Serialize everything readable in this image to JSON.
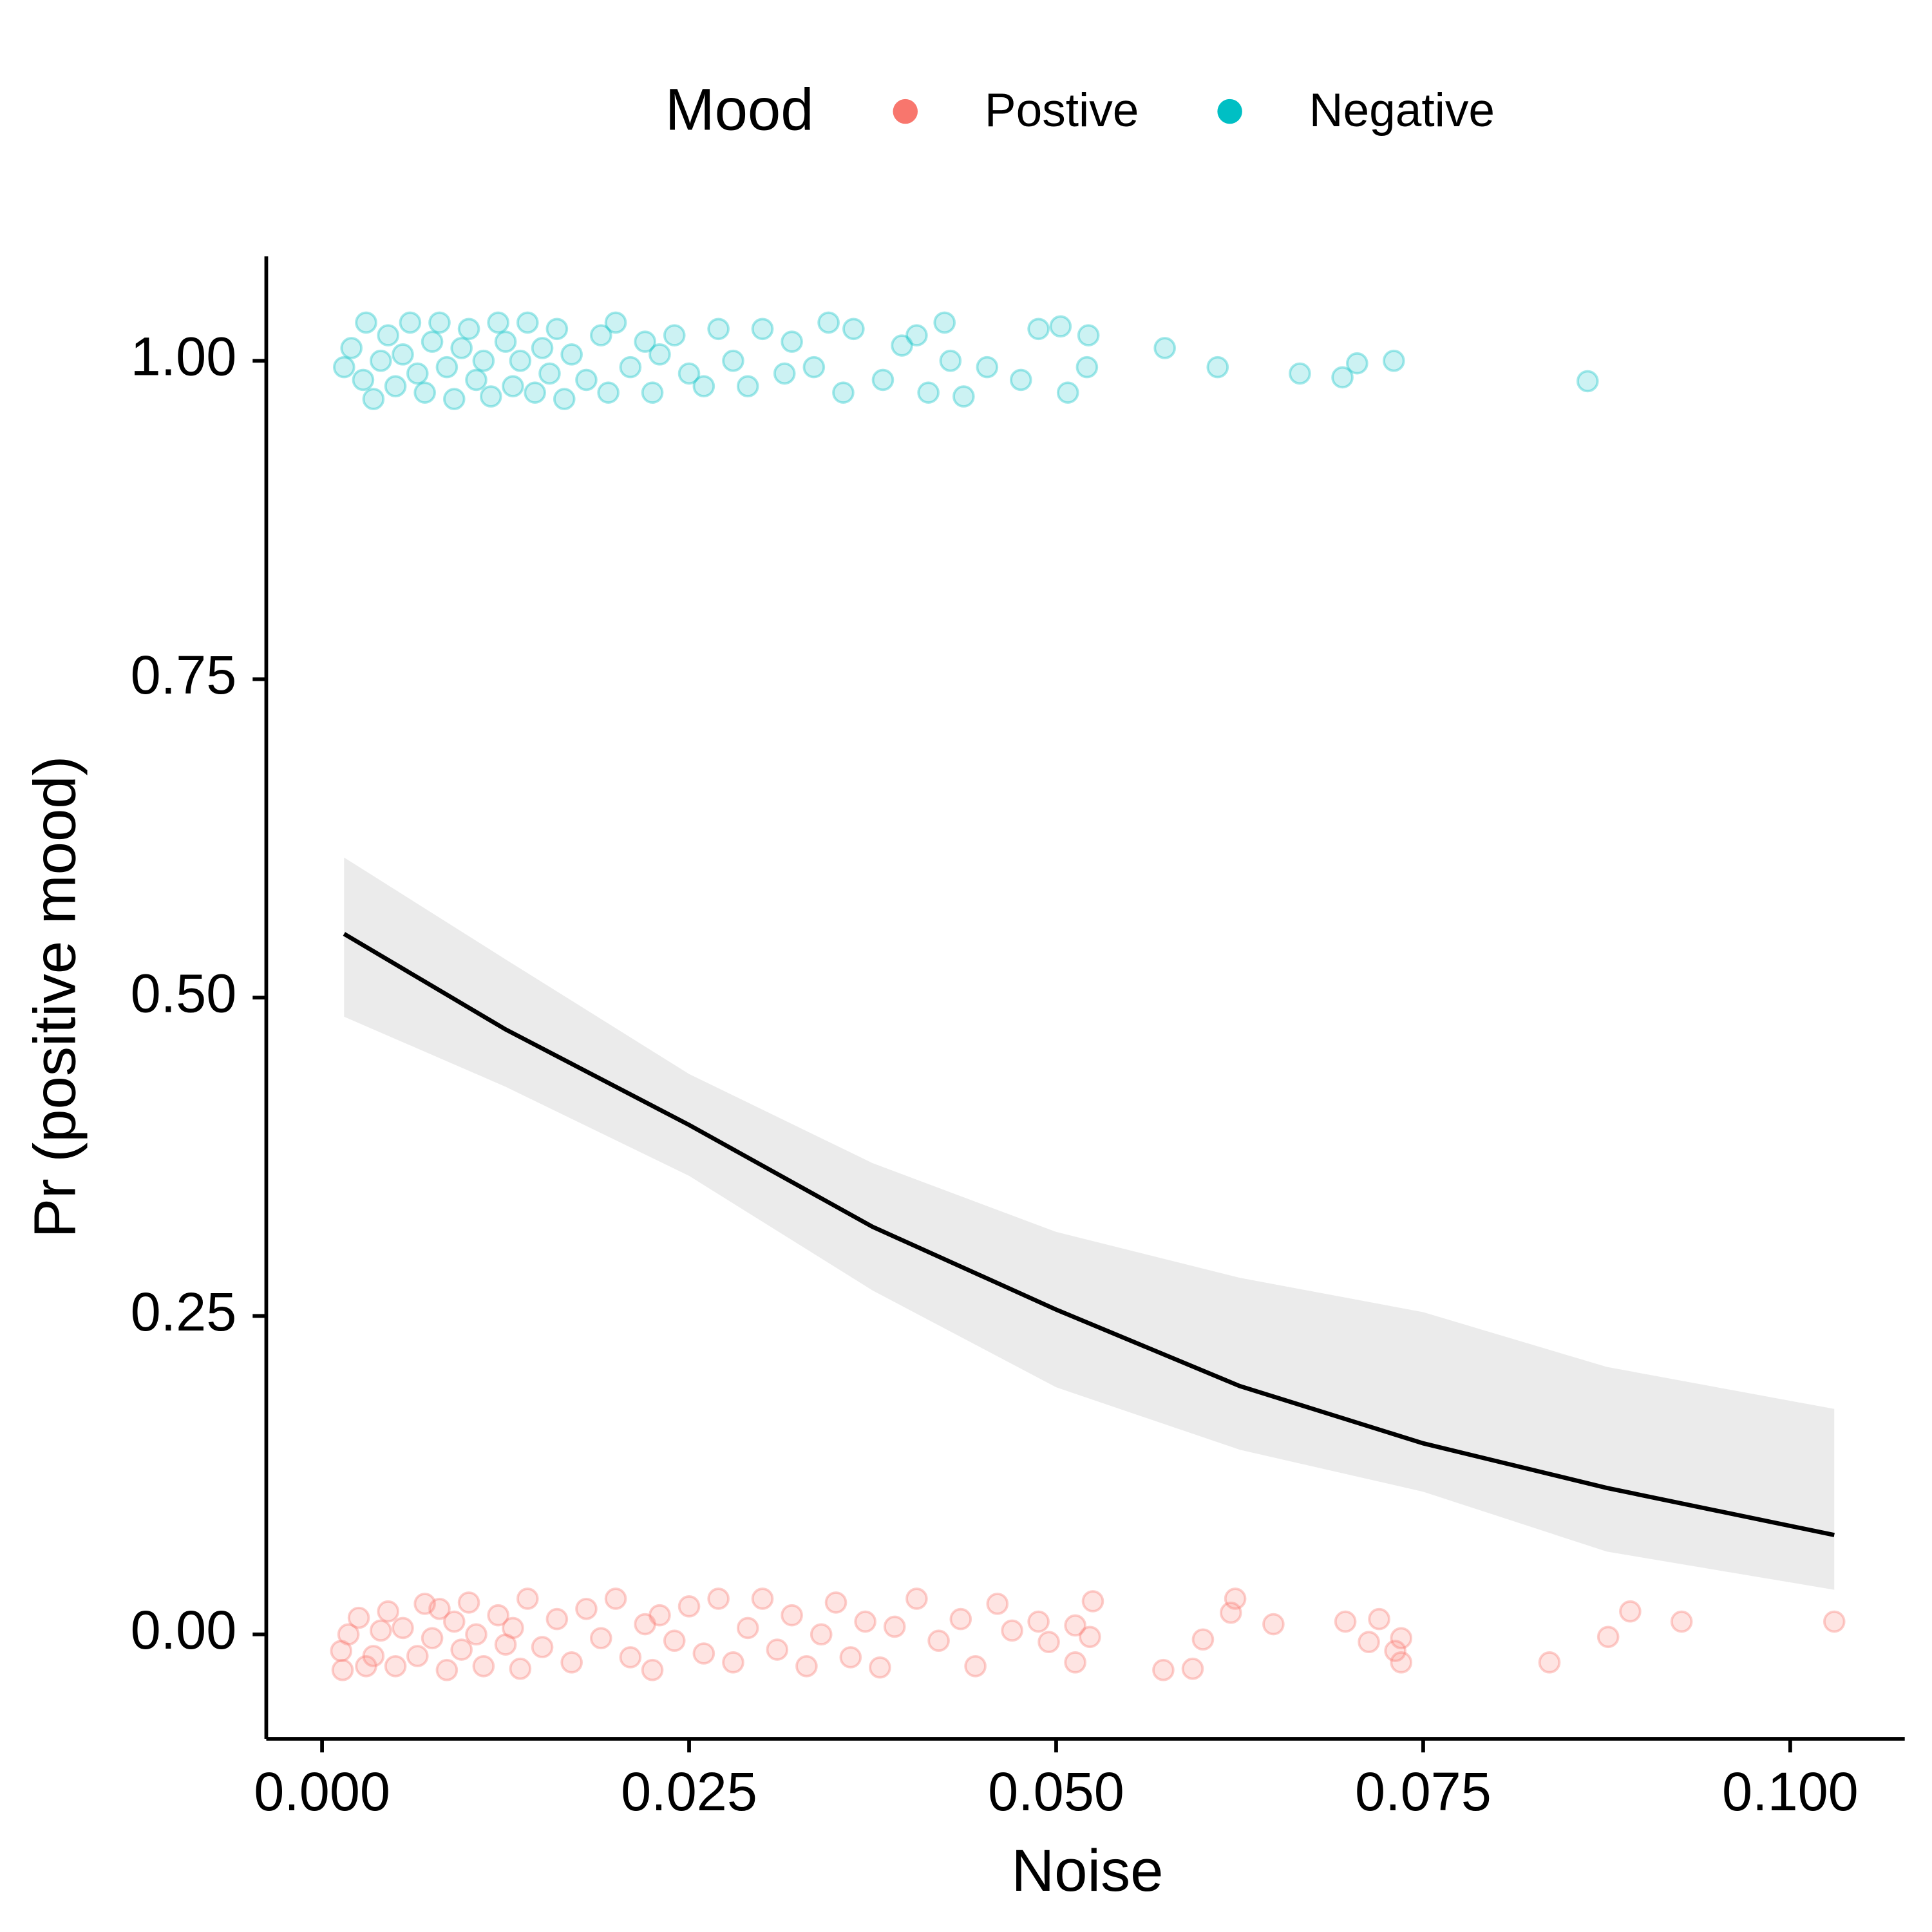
{
  "chart_data": {
    "type": "scatter",
    "x_label": "Noise",
    "y_label": "Pr (positive mood)",
    "legend_title": "Mood",
    "legend_position": "top",
    "xlim": [
      -0.0038,
      0.1078
    ],
    "ylim": [
      -0.082,
      1.082
    ],
    "xticks": [
      {
        "value": 0,
        "label": "0.000"
      },
      0.025,
      {
        "value": 0.05,
        "label": "0.050"
      },
      0.075,
      {
        "value": 0.1,
        "label": "0.100"
      }
    ],
    "yticks": [
      {
        "value": 0,
        "label": "0.00"
      },
      0.25,
      {
        "value": 0.5,
        "label": "0.50"
      },
      0.75,
      {
        "value": 1,
        "label": "1.00"
      }
    ],
    "series": [
      {
        "name": "Postive",
        "color": "#f8766d",
        "x": [
          0.0013,
          0.0014,
          0.0018,
          0.0025,
          0.003,
          0.0035,
          0.004,
          0.0045,
          0.005,
          0.0055,
          0.0065,
          0.007,
          0.0075,
          0.008,
          0.0085,
          0.009,
          0.0095,
          0.01,
          0.0105,
          0.011,
          0.012,
          0.0125,
          0.013,
          0.0135,
          0.014,
          0.015,
          0.016,
          0.017,
          0.018,
          0.019,
          0.02,
          0.021,
          0.022,
          0.0225,
          0.023,
          0.024,
          0.025,
          0.026,
          0.027,
          0.028,
          0.029,
          0.03,
          0.031,
          0.032,
          0.033,
          0.034,
          0.035,
          0.036,
          0.037,
          0.038,
          0.039,
          0.0405,
          0.042,
          0.0435,
          0.0445,
          0.046,
          0.047,
          0.0488,
          0.0495,
          0.0513,
          0.0523,
          0.0513,
          0.0525,
          0.0573,
          0.0593,
          0.06,
          0.0619,
          0.0622,
          0.0648,
          0.0697,
          0.0713,
          0.072,
          0.0731,
          0.0735,
          0.0735,
          0.0836,
          0.0876,
          0.0891,
          0.0926,
          0.103
        ],
        "values": [
          -0.013,
          -0.028,
          0.0,
          0.013,
          -0.025,
          -0.017,
          0.003,
          0.018,
          -0.025,
          0.005,
          -0.017,
          0.024,
          -0.003,
          0.02,
          -0.028,
          0.01,
          -0.012,
          0.025,
          0.0,
          -0.025,
          0.015,
          -0.008,
          0.005,
          -0.027,
          0.028,
          -0.01,
          0.012,
          -0.022,
          0.02,
          -0.003,
          0.028,
          -0.018,
          0.008,
          -0.028,
          0.015,
          -0.005,
          0.022,
          -0.015,
          0.028,
          -0.022,
          0.005,
          0.028,
          -0.012,
          0.015,
          -0.025,
          0.0,
          0.025,
          -0.018,
          0.01,
          -0.026,
          0.006,
          0.028,
          -0.005,
          0.012,
          -0.025,
          0.024,
          0.003,
          0.01,
          -0.006,
          0.007,
          -0.002,
          -0.022,
          0.026,
          -0.028,
          -0.027,
          -0.004,
          0.017,
          0.028,
          0.008,
          0.01,
          -0.006,
          0.012,
          -0.013,
          -0.003,
          -0.022,
          -0.022,
          -0.002,
          0.018,
          0.01,
          0.01
        ]
      },
      {
        "name": "Negative",
        "color": "#00bfc4",
        "x": [
          0.0015,
          0.002,
          0.0028,
          0.003,
          0.0035,
          0.004,
          0.0045,
          0.005,
          0.0055,
          0.006,
          0.0065,
          0.007,
          0.0075,
          0.008,
          0.0085,
          0.009,
          0.0095,
          0.01,
          0.0105,
          0.011,
          0.0115,
          0.012,
          0.0125,
          0.013,
          0.0135,
          0.014,
          0.0145,
          0.015,
          0.0155,
          0.016,
          0.0165,
          0.017,
          0.018,
          0.019,
          0.0195,
          0.02,
          0.021,
          0.022,
          0.0225,
          0.023,
          0.024,
          0.025,
          0.026,
          0.027,
          0.028,
          0.029,
          0.03,
          0.0315,
          0.032,
          0.0335,
          0.0345,
          0.0355,
          0.0362,
          0.0382,
          0.0395,
          0.0405,
          0.0413,
          0.0424,
          0.0428,
          0.0437,
          0.0453,
          0.0476,
          0.0488,
          0.0503,
          0.0508,
          0.0521,
          0.0522,
          0.0574,
          0.061,
          0.0666,
          0.0695,
          0.0705,
          0.073,
          0.0862
        ],
        "values": [
          0.995,
          1.01,
          0.985,
          1.03,
          0.97,
          1.0,
          1.02,
          0.98,
          1.005,
          1.03,
          0.99,
          0.975,
          1.015,
          1.03,
          0.995,
          0.97,
          1.01,
          1.025,
          0.985,
          1.0,
          0.972,
          1.03,
          1.015,
          0.98,
          1.0,
          1.03,
          0.975,
          1.01,
          0.99,
          1.025,
          0.97,
          1.005,
          0.985,
          1.02,
          0.975,
          1.03,
          0.995,
          1.015,
          0.975,
          1.005,
          1.02,
          0.99,
          0.98,
          1.025,
          1.0,
          0.98,
          1.025,
          0.99,
          1.015,
          0.995,
          1.03,
          0.975,
          1.025,
          0.985,
          1.012,
          1.02,
          0.975,
          1.03,
          1.0,
          0.972,
          0.995,
          0.985,
          1.025,
          1.027,
          0.975,
          0.995,
          1.02,
          1.01,
          0.995,
          0.99,
          0.987,
          0.998,
          1.0,
          0.984
        ]
      }
    ],
    "fit": {
      "color": "#000000",
      "band_color": "#ebebeb",
      "x": [
        0.0015,
        0.0125,
        0.025,
        0.0375,
        0.05,
        0.0625,
        0.075,
        0.0875,
        0.103
      ],
      "values": [
        0.55,
        0.475,
        0.4,
        0.32,
        0.255,
        0.195,
        0.15,
        0.115,
        0.078
      ],
      "lower": [
        0.485,
        0.43,
        0.36,
        0.27,
        0.194,
        0.145,
        0.112,
        0.065,
        0.035
      ],
      "upper": [
        0.61,
        0.53,
        0.44,
        0.37,
        0.316,
        0.28,
        0.253,
        0.21,
        0.177
      ]
    }
  }
}
